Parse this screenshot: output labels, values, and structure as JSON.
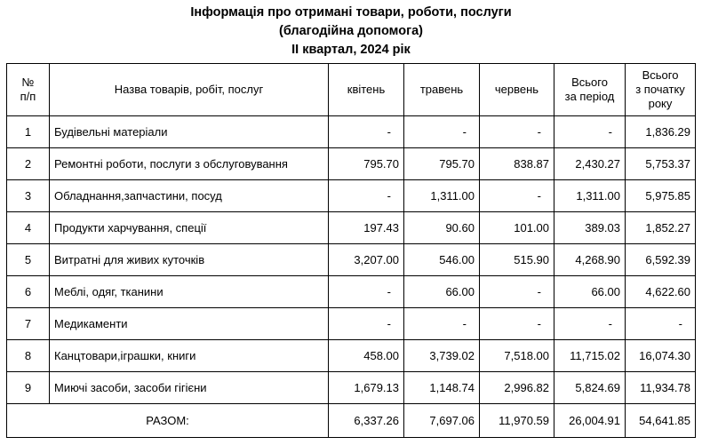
{
  "title": {
    "line1": "Інформація про отримані товари, роботи, послуги",
    "line2": "(благодійна допомога)",
    "line3": "ІІ квартал, 2024 рік"
  },
  "table": {
    "headers": {
      "num_line1": "№",
      "num_line2": "п/п",
      "name": "Назва товарів, робіт, послуг",
      "april": "квітень",
      "may": "травень",
      "june": "червень",
      "period_line1": "Всього",
      "period_line2": "за період",
      "ytd_line1": "Всього",
      "ytd_line2": "з початку",
      "ytd_line3": "року"
    },
    "rows": [
      {
        "num": "1",
        "name": "Будівельні матеріали",
        "april": "-",
        "may": "-",
        "june": "-",
        "period": "-",
        "ytd": "1,836.29"
      },
      {
        "num": "2",
        "name": "Ремонтні роботи, послуги з обслуговування",
        "april": "795.70",
        "may": "795.70",
        "june": "838.87",
        "period": "2,430.27",
        "ytd": "5,753.37"
      },
      {
        "num": "3",
        "name": "Обладнання,запчастини, посуд",
        "april": "-",
        "may": "1,311.00",
        "june": "-",
        "period": "1,311.00",
        "ytd": "5,975.85"
      },
      {
        "num": "4",
        "name": "Продукти харчування, спеції",
        "april": "197.43",
        "may": "90.60",
        "june": "101.00",
        "period": "389.03",
        "ytd": "1,852.27"
      },
      {
        "num": "5",
        "name": "Витратні для живих куточків",
        "april": "3,207.00",
        "may": "546.00",
        "june": "515.90",
        "period": "4,268.90",
        "ytd": "6,592.39"
      },
      {
        "num": "6",
        "name": "Меблі, одяг, тканини",
        "april": "-",
        "may": "66.00",
        "june": "-",
        "period": "66.00",
        "ytd": "4,622.60"
      },
      {
        "num": "7",
        "name": "Медикаменти",
        "april": "-",
        "may": "-",
        "june": "-",
        "period": "-",
        "ytd": "-"
      },
      {
        "num": "8",
        "name": "Канцтовари,іграшки, книги",
        "april": "458.00",
        "may": "3,739.02",
        "june": "7,518.00",
        "period": "11,715.02",
        "ytd": "16,074.30"
      },
      {
        "num": "9",
        "name": "Миючі засоби, засоби гігієни",
        "april": "1,679.13",
        "may": "1,148.74",
        "june": "2,996.82",
        "period": "5,824.69",
        "ytd": "11,934.78"
      }
    ],
    "total": {
      "label": "РАЗОМ:",
      "april": "6,337.26",
      "may": "7,697.06",
      "june": "11,970.59",
      "period": "26,004.91",
      "ytd": "54,641.85"
    }
  }
}
